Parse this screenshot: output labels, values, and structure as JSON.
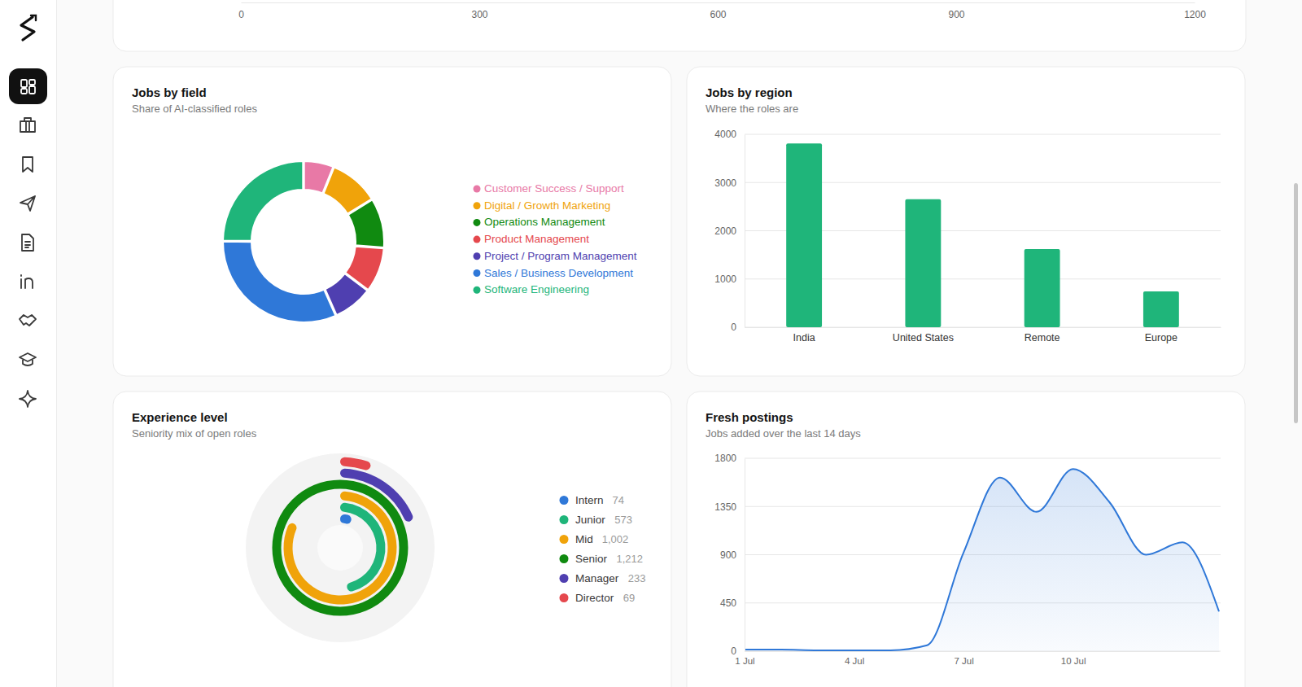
{
  "chart_data": [
    {
      "type": "bar",
      "orientation": "horizontal",
      "xlim": [
        0,
        1200
      ],
      "xticks": [
        0,
        300,
        600,
        900,
        1200
      ]
    },
    {
      "type": "pie",
      "title": "Jobs by field",
      "subtitle": "Share of AI-classified roles",
      "categories": [
        "Customer Success / Support",
        "Digital / Growth Marketing",
        "Operations Management",
        "Product Management",
        "Project / Program Management",
        "Sales / Business Development",
        "Software Engineering"
      ],
      "values": [
        6,
        10,
        10,
        9,
        8,
        32,
        25
      ],
      "colors": [
        "#e879a6",
        "#f0a30a",
        "#108a10",
        "#e5484d",
        "#4f3fb0",
        "#2f78d8",
        "#1fb57a"
      ],
      "legend": "right"
    },
    {
      "type": "bar",
      "title": "Jobs by region",
      "subtitle": "Where the roles are",
      "categories": [
        "India",
        "United States",
        "Remote",
        "Europe"
      ],
      "values": [
        3810,
        2655,
        1620,
        741
      ],
      "color": "#1fb57a",
      "ylim": [
        0,
        4000
      ],
      "yticks": [
        0,
        1000,
        2000,
        3000,
        4000
      ],
      "grid": true
    },
    {
      "type": "radial_bar",
      "title": "Experience level",
      "subtitle": "Seniority mix of open roles",
      "categories": [
        "Intern",
        "Junior",
        "Mid",
        "Senior",
        "Manager",
        "Director"
      ],
      "values": [
        74,
        573,
        1002,
        1212,
        233,
        69
      ],
      "value_labels": [
        "74",
        "573",
        "1,002",
        "1,212",
        "233",
        "69"
      ],
      "colors": [
        "#2f78d8",
        "#1fb57a",
        "#f0a30a",
        "#108a10",
        "#4f3fb0",
        "#e5484d"
      ],
      "legend": "right"
    },
    {
      "type": "area",
      "title": "Fresh postings",
      "subtitle": "Jobs added over the last 14 days",
      "categories": [
        "1 Jul",
        null,
        null,
        "4 Jul",
        null,
        null,
        "7 Jul",
        null,
        null,
        "10 Jul",
        null,
        null,
        null,
        null
      ],
      "values": [
        15,
        15,
        8,
        8,
        8,
        55,
        920,
        1620,
        1300,
        1700,
        1390,
        900,
        1015,
        370
      ],
      "color": "#2f78d8",
      "ylim": [
        0,
        1800
      ],
      "yticks": [
        0,
        450,
        900,
        1350,
        1800
      ],
      "grid": true
    }
  ]
}
